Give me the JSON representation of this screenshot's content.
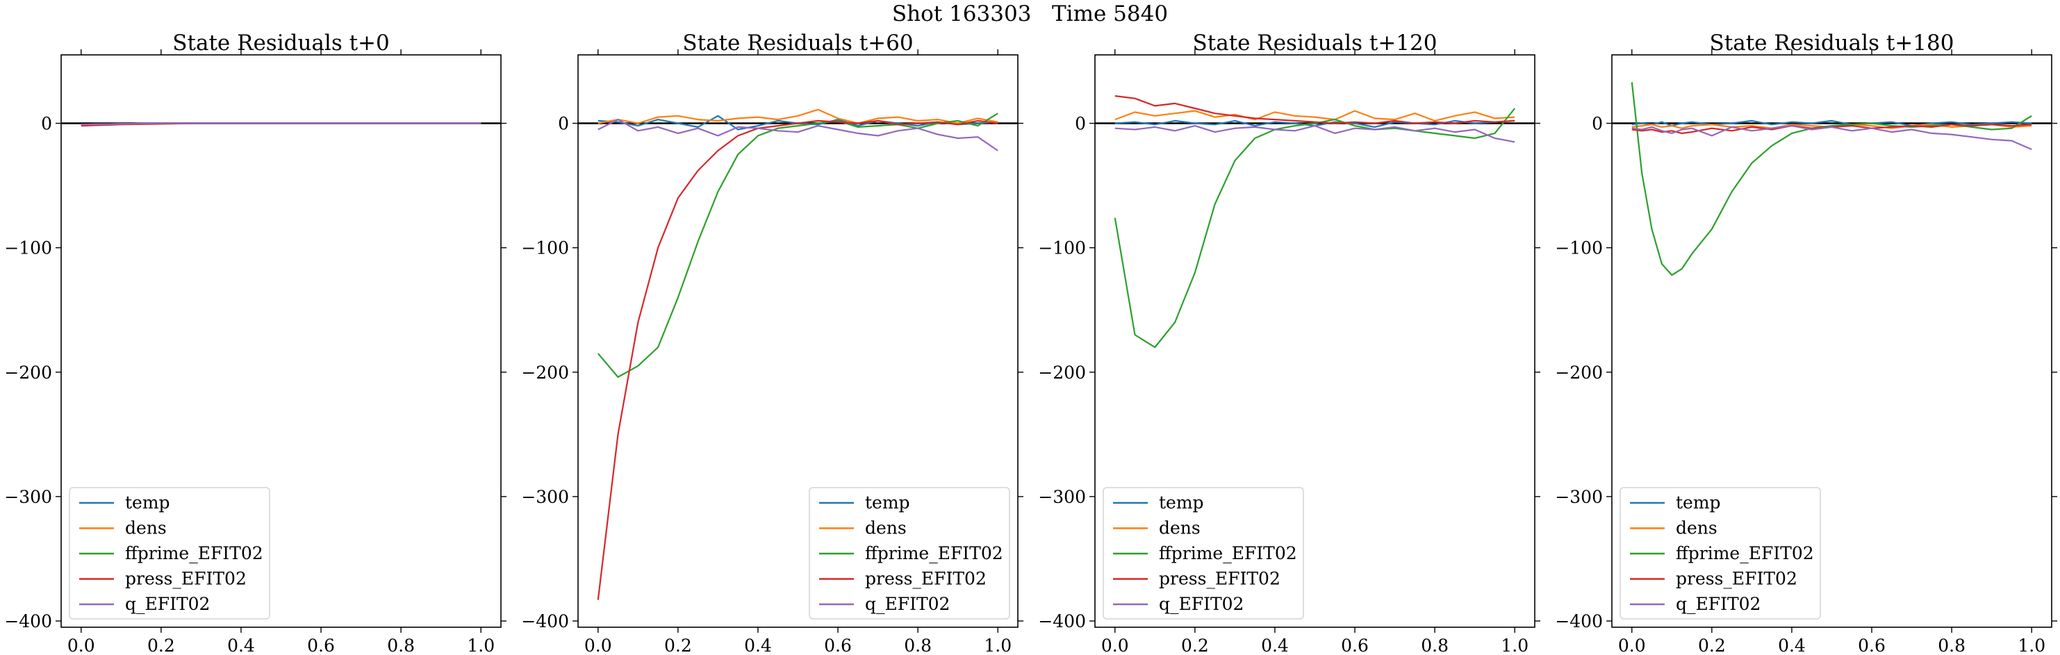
{
  "suptitle": "Shot 163303   Time 5840",
  "colors": {
    "temp": "#1f77b4",
    "dens": "#ff7f0e",
    "ffprime_EFIT02": "#2ca02c",
    "press_EFIT02": "#d62728",
    "q_EFIT02": "#9467bd",
    "zero_line": "#000000"
  },
  "chart_data": [
    {
      "type": "line",
      "title": "State Residuals t+0",
      "xlabel": "",
      "ylabel": "",
      "xlim": [
        -0.05,
        1.05
      ],
      "ylim": [
        -405,
        55
      ],
      "x_ticks": [
        0.0,
        0.2,
        0.4,
        0.6,
        0.8,
        1.0
      ],
      "x_tick_labels": [
        "0.0",
        "0.2",
        "0.4",
        "0.6",
        "0.8",
        "1.0"
      ],
      "y_ticks": [
        0,
        -100,
        -200,
        -300,
        -400
      ],
      "y_tick_labels": [
        "0",
        "−100",
        "−200",
        "−300",
        "−400"
      ],
      "grid": false,
      "legend_position": "lower-left",
      "x": [
        0.0,
        0.1,
        0.2,
        0.3,
        0.4,
        0.5,
        0.6,
        0.7,
        0.8,
        0.9,
        1.0
      ],
      "series": [
        {
          "name": "temp",
          "values": [
            -1,
            -0.5,
            0,
            0,
            0,
            0,
            0,
            0,
            0,
            0,
            0
          ]
        },
        {
          "name": "dens",
          "values": [
            -1,
            -0.5,
            0,
            0,
            0,
            0,
            0,
            0,
            0,
            0,
            0
          ]
        },
        {
          "name": "ffprime_EFIT02",
          "values": [
            -1,
            -0.5,
            0,
            0,
            0,
            0,
            0,
            0,
            0,
            0,
            0
          ]
        },
        {
          "name": "press_EFIT02",
          "values": [
            -2,
            -1,
            -0.5,
            0,
            0,
            0,
            0,
            0,
            0,
            0,
            0
          ]
        },
        {
          "name": "q_EFIT02",
          "values": [
            -1,
            -0.5,
            0,
            0,
            0,
            0,
            0,
            0,
            0,
            0,
            0
          ]
        }
      ]
    },
    {
      "type": "line",
      "title": "State Residuals t+60",
      "xlabel": "",
      "ylabel": "",
      "xlim": [
        -0.05,
        1.05
      ],
      "ylim": [
        -405,
        55
      ],
      "x_ticks": [
        0.0,
        0.2,
        0.4,
        0.6,
        0.8,
        1.0
      ],
      "x_tick_labels": [
        "0.0",
        "0.2",
        "0.4",
        "0.6",
        "0.8",
        "1.0"
      ],
      "y_ticks": [
        0,
        -100,
        -200,
        -300,
        -400
      ],
      "y_tick_labels": [
        "0",
        "−100",
        "−200",
        "−300",
        "−400"
      ],
      "grid": false,
      "legend_position": "lower-right",
      "x": [
        0.0,
        0.05,
        0.1,
        0.15,
        0.2,
        0.25,
        0.3,
        0.35,
        0.4,
        0.45,
        0.5,
        0.55,
        0.6,
        0.65,
        0.7,
        0.75,
        0.8,
        0.85,
        0.9,
        0.95,
        1.0
      ],
      "series": [
        {
          "name": "temp",
          "values": [
            2,
            1,
            -2,
            3,
            0,
            -3,
            6,
            -5,
            -2,
            2,
            0,
            -1,
            3,
            -2,
            2,
            0,
            -2,
            1,
            -1,
            0,
            1
          ]
        },
        {
          "name": "dens",
          "values": [
            0,
            3,
            0,
            5,
            6,
            3,
            2,
            4,
            5,
            3,
            6,
            11,
            4,
            0,
            4,
            5,
            2,
            3,
            0,
            4,
            1
          ]
        },
        {
          "name": "ffprime_EFIT02",
          "values": [
            -185,
            -204,
            -195,
            -180,
            -140,
            -95,
            -55,
            -25,
            -10,
            -4,
            -2,
            0,
            2,
            -3,
            -2,
            -1,
            -4,
            0,
            2,
            -2,
            8
          ]
        },
        {
          "name": "press_EFIT02",
          "values": [
            -383,
            -250,
            -160,
            -100,
            -60,
            -38,
            -22,
            -10,
            -4,
            -2,
            0,
            2,
            1,
            0,
            2,
            -1,
            0,
            1,
            -1,
            2,
            0
          ]
        },
        {
          "name": "q_EFIT02",
          "values": [
            -5,
            3,
            -6,
            -3,
            -8,
            -4,
            -10,
            -3,
            -4,
            -6,
            -7,
            -2,
            -5,
            -8,
            -10,
            -6,
            -4,
            -9,
            -12,
            -11,
            -22
          ]
        }
      ]
    },
    {
      "type": "line",
      "title": "State Residuals t+120",
      "xlabel": "",
      "ylabel": "",
      "xlim": [
        -0.05,
        1.05
      ],
      "ylim": [
        -405,
        55
      ],
      "x_ticks": [
        0.0,
        0.2,
        0.4,
        0.6,
        0.8,
        1.0
      ],
      "x_tick_labels": [
        "0.0",
        "0.2",
        "0.4",
        "0.6",
        "0.8",
        "1.0"
      ],
      "y_ticks": [
        0,
        -100,
        -200,
        -300,
        -400
      ],
      "y_tick_labels": [
        "0",
        "−100",
        "−200",
        "−300",
        "−400"
      ],
      "grid": false,
      "legend_position": "lower-left",
      "x": [
        0.0,
        0.05,
        0.1,
        0.15,
        0.2,
        0.25,
        0.3,
        0.35,
        0.4,
        0.45,
        0.5,
        0.55,
        0.6,
        0.65,
        0.7,
        0.75,
        0.8,
        0.85,
        0.9,
        0.95,
        1.0
      ],
      "series": [
        {
          "name": "temp",
          "values": [
            0,
            1,
            -1,
            2,
            0,
            -1,
            2,
            -2,
            1,
            0,
            -2,
            1,
            0,
            -3,
            1,
            0,
            -1,
            2,
            0,
            1,
            2
          ]
        },
        {
          "name": "dens",
          "values": [
            3,
            9,
            6,
            8,
            10,
            5,
            7,
            3,
            9,
            6,
            5,
            3,
            10,
            4,
            3,
            8,
            2,
            6,
            9,
            4,
            5
          ]
        },
        {
          "name": "ffprime_EFIT02",
          "values": [
            -76,
            -170,
            -180,
            -160,
            -120,
            -65,
            -30,
            -12,
            -5,
            -2,
            0,
            3,
            -2,
            -5,
            -4,
            -6,
            -8,
            -10,
            -12,
            -8,
            12
          ]
        },
        {
          "name": "press_EFIT02",
          "values": [
            22,
            20,
            14,
            16,
            12,
            8,
            6,
            4,
            3,
            2,
            1,
            0,
            1,
            0,
            2,
            0,
            1,
            0,
            2,
            1,
            2
          ]
        },
        {
          "name": "q_EFIT02",
          "values": [
            -4,
            -5,
            -3,
            -6,
            -2,
            -7,
            -4,
            -3,
            -5,
            -6,
            -2,
            -8,
            -4,
            -5,
            -3,
            -6,
            -4,
            -7,
            -5,
            -12,
            -15
          ]
        }
      ]
    },
    {
      "type": "line",
      "title": "State Residuals t+180",
      "xlabel": "",
      "ylabel": "",
      "xlim": [
        -0.05,
        1.05
      ],
      "ylim": [
        -405,
        55
      ],
      "x_ticks": [
        0.0,
        0.2,
        0.4,
        0.6,
        0.8,
        1.0
      ],
      "x_tick_labels": [
        "0.0",
        "0.2",
        "0.4",
        "0.6",
        "0.8",
        "1.0"
      ],
      "y_ticks": [
        0,
        -100,
        -200,
        -300,
        -400
      ],
      "y_tick_labels": [
        "0",
        "−100",
        "−200",
        "−300",
        "−400"
      ],
      "grid": false,
      "legend_position": "lower-left",
      "x": [
        0.0,
        0.025,
        0.05,
        0.075,
        0.1,
        0.125,
        0.15,
        0.2,
        0.25,
        0.3,
        0.35,
        0.4,
        0.45,
        0.5,
        0.55,
        0.6,
        0.65,
        0.7,
        0.75,
        0.8,
        0.85,
        0.9,
        0.95,
        1.0
      ],
      "series": [
        {
          "name": "temp",
          "values": [
            -1,
            0,
            -1,
            1,
            -2,
            0,
            1,
            -1,
            0,
            2,
            -1,
            1,
            0,
            2,
            -1,
            0,
            1,
            -2,
            0,
            1,
            -1,
            0,
            1,
            0
          ]
        },
        {
          "name": "dens",
          "values": [
            -3,
            -2,
            -1,
            -3,
            -2,
            -4,
            -2,
            -1,
            -3,
            -2,
            -4,
            -1,
            -2,
            -3,
            -1,
            -2,
            -4,
            -2,
            -1,
            -3,
            -2,
            -1,
            -3,
            -2
          ]
        },
        {
          "name": "ffprime_EFIT02",
          "values": [
            33,
            -40,
            -85,
            -113,
            -122,
            -117,
            -105,
            -85,
            -55,
            -32,
            -18,
            -8,
            -4,
            -2,
            -1,
            0,
            -2,
            -3,
            -2,
            -1,
            -3,
            -5,
            -4,
            6
          ]
        },
        {
          "name": "press_EFIT02",
          "values": [
            -5,
            -6,
            -5,
            -7,
            -6,
            -8,
            -7,
            -4,
            -6,
            -3,
            -5,
            -2,
            -4,
            -3,
            -2,
            -4,
            -3,
            -2,
            -3,
            -1,
            -2,
            -1,
            -2,
            -1
          ]
        },
        {
          "name": "q_EFIT02",
          "values": [
            -4,
            -5,
            -3,
            -6,
            -8,
            -5,
            -4,
            -10,
            -3,
            -6,
            -4,
            -2,
            -5,
            -3,
            -6,
            -4,
            -7,
            -5,
            -8,
            -9,
            -11,
            -13,
            -14,
            -21
          ]
        }
      ]
    }
  ]
}
